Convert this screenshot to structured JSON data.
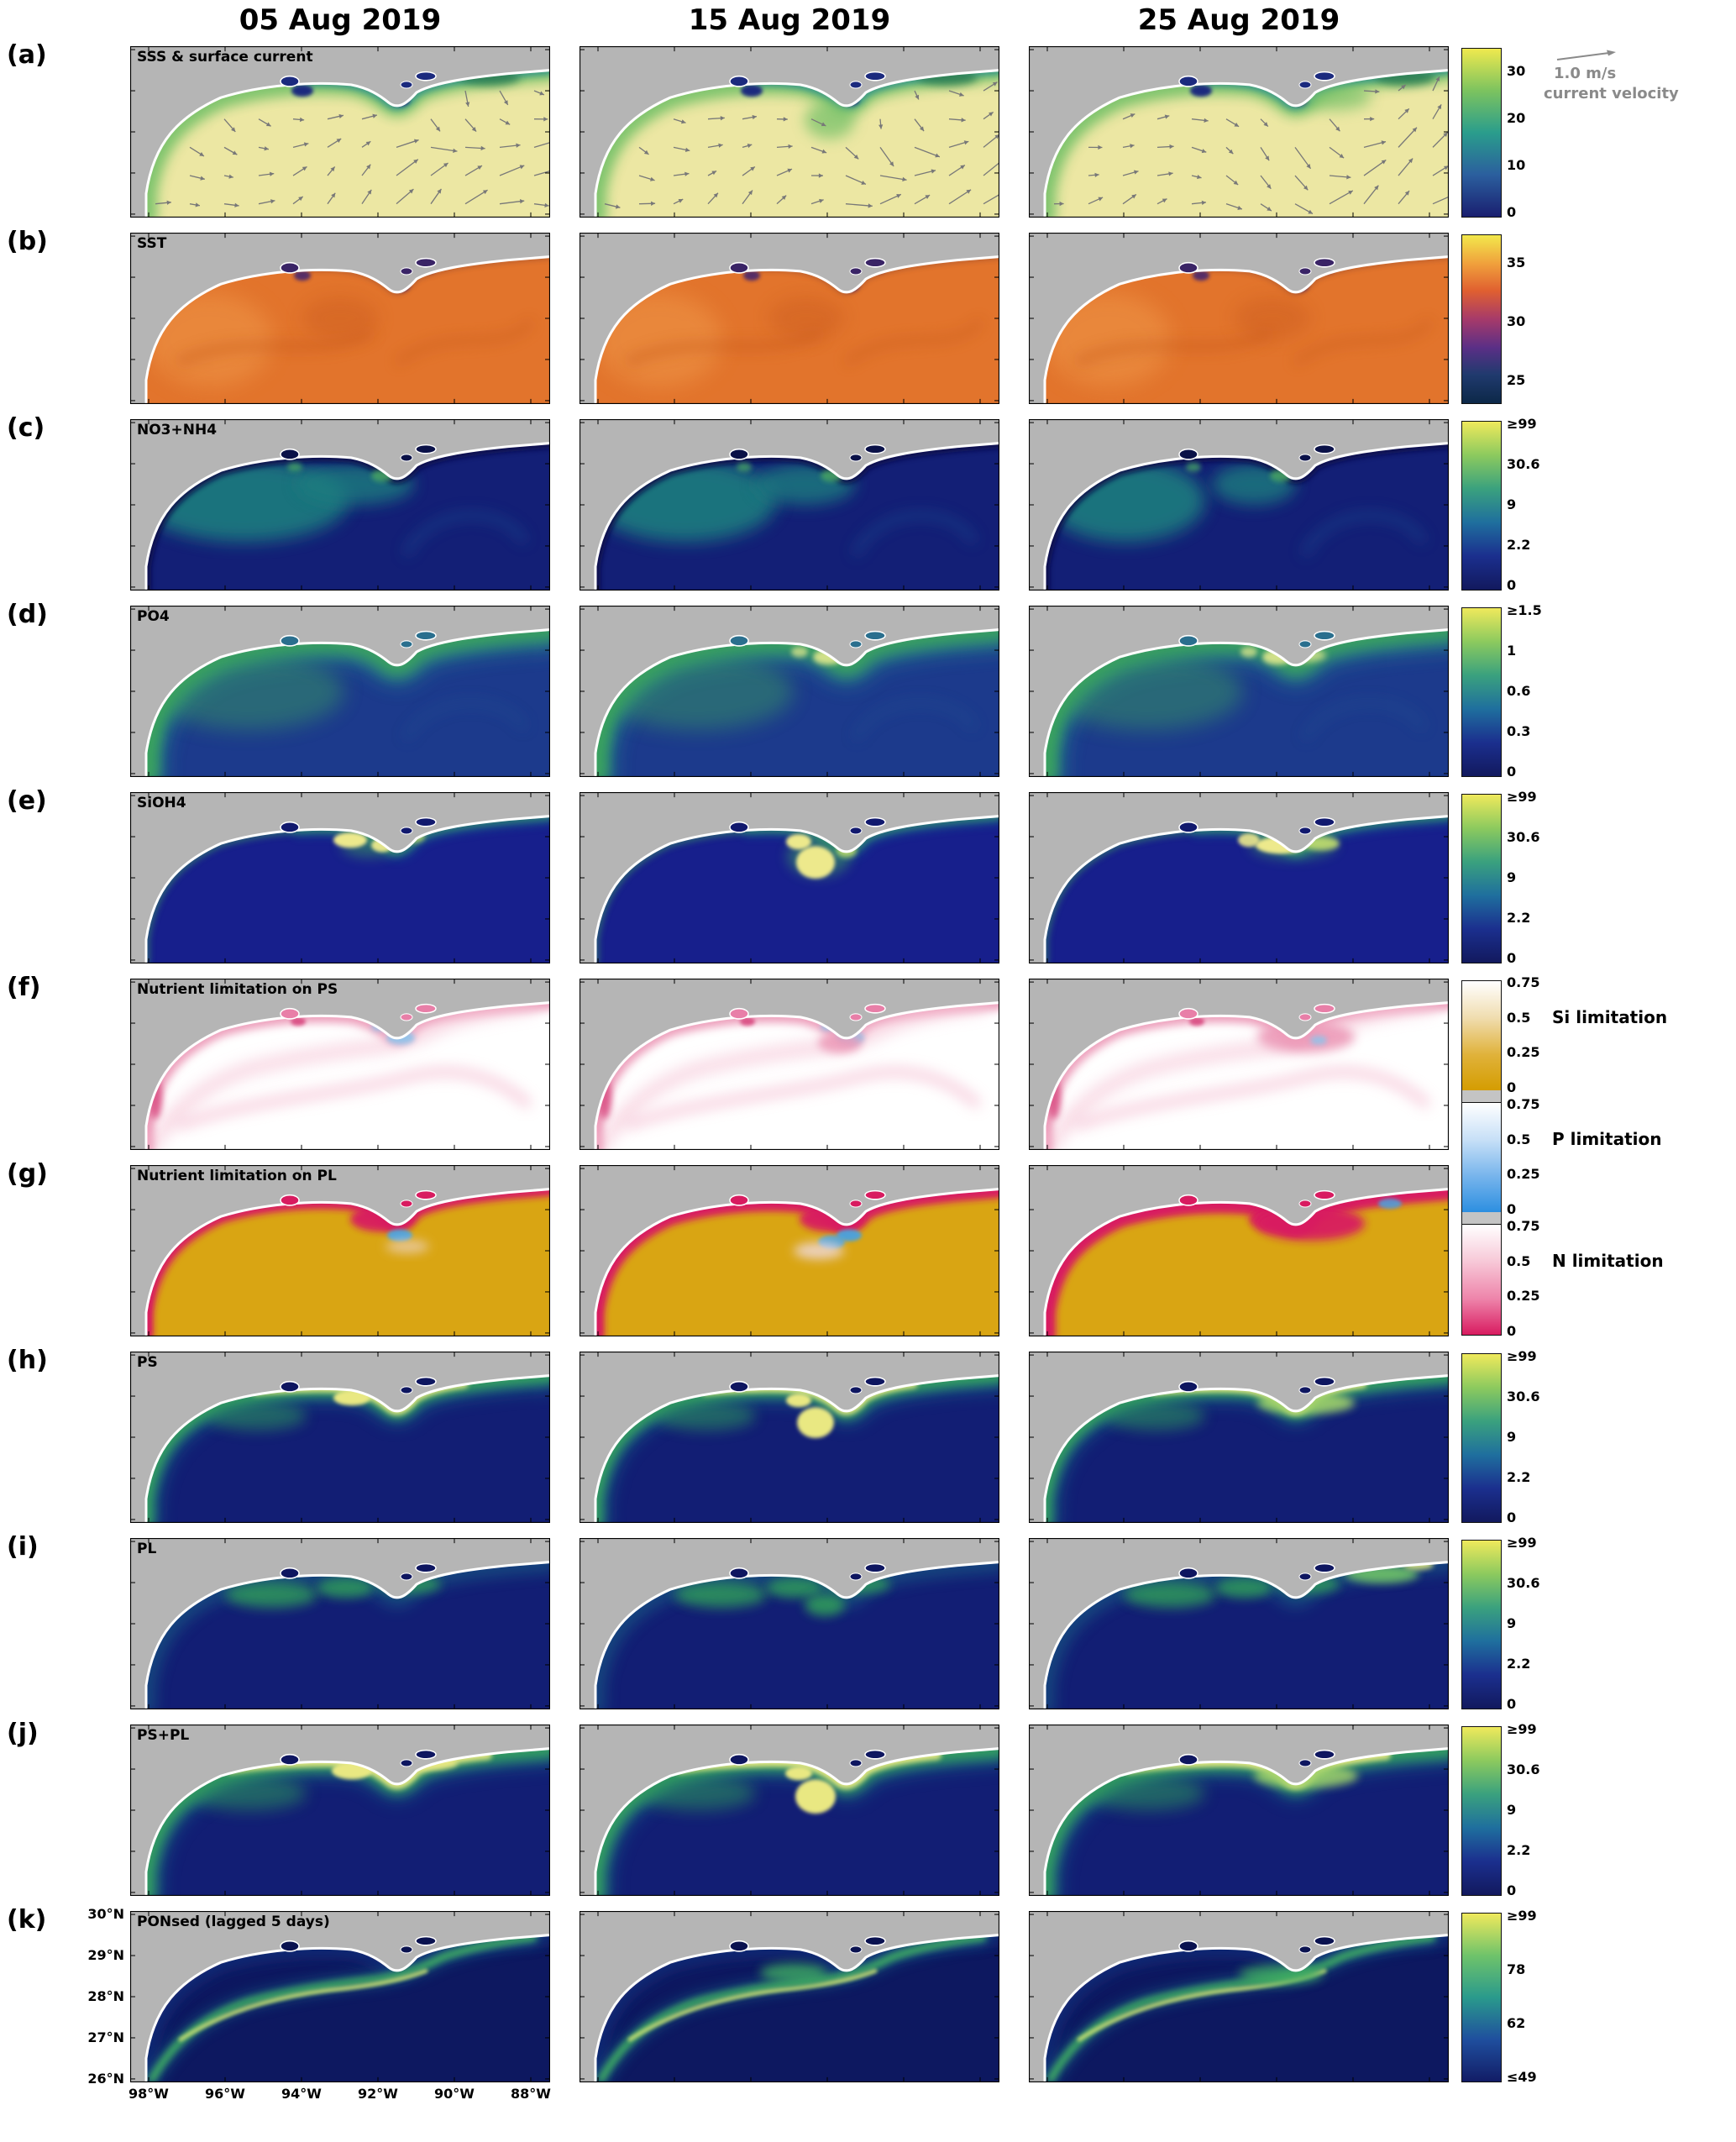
{
  "figure": {
    "columns": [
      {
        "label": "05 Aug 2019"
      },
      {
        "label": "15 Aug 2019"
      },
      {
        "label": "25 Aug 2019"
      }
    ],
    "quiver_legend": {
      "speed_label": "1.0 m/s",
      "caption": "current velocity"
    },
    "axes": {
      "lat_ticks": [
        "30°N",
        "29°N",
        "28°N",
        "27°N",
        "26°N"
      ],
      "lon_ticks": [
        "98°W",
        "96°W",
        "94°W",
        "92°W",
        "90°W",
        "88°W"
      ]
    },
    "colors": {
      "land": "#b5b5b5",
      "background": "#ffffff",
      "tick_text": "#000000",
      "legend_text": "#8a8a8a",
      "gap_gray": "#c4c4c4",
      "arrow": "#787878"
    },
    "rows": [
      {
        "id": "a",
        "index_label": "(a)",
        "title": "SSS & surface current",
        "var_id": "sss",
        "palette": {
          "base": "#ece7a3",
          "green": "#79c26a",
          "green2": "#2e7f52",
          "teal": "#2b8f8d",
          "navy": "#1b2a7e",
          "bay": "#1b2a7e"
        },
        "colorbar": {
          "ticks": [
            "30",
            "20",
            "10",
            "0"
          ],
          "tick_pos": [
            0.14,
            0.42,
            0.7,
            0.98
          ],
          "gradient": [
            "#efe94e",
            "#7cc35f",
            "#2a9d8c",
            "#2b5f9e",
            "#1a1f70"
          ]
        }
      },
      {
        "id": "b",
        "index_label": "(b)",
        "title": "SST",
        "var_id": "sst",
        "palette": {
          "base": "#e2742c",
          "swirl": "#c6571e",
          "fringe": "#8a4430",
          "warm": "#f09a4c",
          "dark": "#46286e",
          "bay": "#3a2466"
        },
        "colorbar": {
          "ticks": [
            "35",
            "30",
            "25"
          ],
          "tick_pos": [
            0.17,
            0.52,
            0.87
          ],
          "gradient": [
            "#f2e84c",
            "#f0a03c",
            "#e06030",
            "#a63a6a",
            "#5a2f86",
            "#203a6e",
            "#0c2848"
          ]
        }
      },
      {
        "id": "c",
        "index_label": "(c)",
        "title": "NO3+NH4",
        "var_id": "no3",
        "palette": {
          "base": "#131f76",
          "teal": "#1f7d7f",
          "green": "#46a465",
          "dark": "#0a1148",
          "swirlblue": "#1e4a8e",
          "bay": "#0a1148"
        },
        "colorbar": {
          "ticks": [
            "≥99",
            "30.6",
            "9",
            "2.2",
            "0"
          ],
          "tick_pos": [
            0.02,
            0.26,
            0.5,
            0.74,
            0.98
          ],
          "gradient": [
            "#efe95c",
            "#8cca5e",
            "#3aa17e",
            "#1f6f9e",
            "#1b2f8e",
            "#12195e"
          ]
        }
      },
      {
        "id": "d",
        "index_label": "(d)",
        "title": "PO4",
        "var_id": "po4",
        "palette": {
          "base": "#1c3a8c",
          "teal": "#27808e",
          "green": "#3aa35f",
          "pale": "#d9e48c",
          "swirlblue": "#234f92",
          "bay": "#2a6f8e"
        },
        "colorbar": {
          "ticks": [
            "≥1.5",
            "1",
            "0.6",
            "0.3",
            "0"
          ],
          "tick_pos": [
            0.02,
            0.26,
            0.5,
            0.74,
            0.98
          ],
          "gradient": [
            "#efe95c",
            "#8cca5e",
            "#3aa17e",
            "#1f6f9e",
            "#1b2f8e",
            "#12195e"
          ]
        }
      },
      {
        "id": "e",
        "index_label": "(e)",
        "title": "SiOH4",
        "var_id": "sioh4",
        "palette": {
          "base": "#171f8c",
          "teal": "#1f7f8e",
          "green": "#3fa45f",
          "yellow": "#ede98c",
          "yg": "#bcd96e",
          "bay": "#11196e"
        },
        "colorbar": {
          "ticks": [
            "≥99",
            "30.6",
            "9",
            "2.2",
            "0"
          ],
          "tick_pos": [
            0.02,
            0.26,
            0.5,
            0.74,
            0.98
          ],
          "gradient": [
            "#efe95c",
            "#8cca5e",
            "#3aa17e",
            "#1f6f9e",
            "#1b2f8e",
            "#12195e"
          ]
        }
      },
      {
        "id": "f",
        "index_label": "(f)",
        "title": "Nutrient limitation on PS",
        "var_id": "limps",
        "palette": {
          "base": "#ffffff",
          "pink": "#ec9ab8",
          "pinkpale": "#f5c3d5",
          "pinkpale2": "#f3b3ca",
          "deep": "#d84a80",
          "blue": "#8fc3ea",
          "bay": "#e87fa8"
        },
        "colorbar": null
      },
      {
        "id": "g",
        "index_label": "(g)",
        "title": "Nutrient limitation on PL",
        "var_id": "limpl",
        "palette": {
          "base": "#d9a513",
          "crimson": "#d81b60",
          "blue": "#4aa3e0",
          "pale": "#f0dbe4",
          "bay": "#d81b60"
        },
        "colorbar": null
      },
      {
        "id": "h",
        "index_label": "(h)",
        "title": "PS",
        "var_id": "ps",
        "palette": {
          "base": "#121e74",
          "teal": "#1f7f8e",
          "green": "#35a45f",
          "green2": "#2a8f5f",
          "yellow": "#e9e882",
          "yg": "#9fd06a",
          "bay": "#0e1660"
        },
        "colorbar": {
          "ticks": [
            "≥99",
            "30.6",
            "9",
            "2.2",
            "0"
          ],
          "tick_pos": [
            0.02,
            0.26,
            0.5,
            0.74,
            0.98
          ],
          "gradient": [
            "#efe95c",
            "#8cca5e",
            "#3aa17e",
            "#1f6f9e",
            "#1b2f8e",
            "#12195e"
          ]
        }
      },
      {
        "id": "i",
        "index_label": "(i)",
        "title": "PL",
        "var_id": "pl",
        "palette": {
          "base": "#121e74",
          "teal": "#1f7f8e",
          "green": "#2f9a5c",
          "brightgreen": "#6fc468",
          "yellow": "#dfe87f",
          "bay": "#0e1660"
        },
        "colorbar": {
          "ticks": [
            "≥99",
            "30.6",
            "9",
            "2.2",
            "0"
          ],
          "tick_pos": [
            0.02,
            0.26,
            0.5,
            0.74,
            0.98
          ],
          "gradient": [
            "#efe95c",
            "#8cca5e",
            "#3aa17e",
            "#1f6f9e",
            "#1b2f8e",
            "#12195e"
          ]
        }
      },
      {
        "id": "j",
        "index_label": "(j)",
        "title": "PS+PL",
        "var_id": "pspl",
        "palette": {
          "base": "#121e74",
          "teal": "#1f7f8e",
          "green": "#35a45f",
          "green2": "#2a8f5f",
          "yellow": "#e9e882",
          "yg": "#9fd06a",
          "bay": "#0e1660"
        },
        "colorbar": {
          "ticks": [
            "≥99",
            "30.6",
            "9",
            "2.2",
            "0"
          ],
          "tick_pos": [
            0.02,
            0.26,
            0.5,
            0.74,
            0.98
          ],
          "gradient": [
            "#efe95c",
            "#8cca5e",
            "#3aa17e",
            "#1f6f9e",
            "#1b2f8e",
            "#12195e"
          ]
        }
      },
      {
        "id": "k",
        "index_label": "(k)",
        "title": "PONsed (lagged 5 days)",
        "var_id": "ponsed",
        "palette": {
          "base": "#0d1860",
          "teal": "#1f6f8e",
          "green": "#3fae62",
          "yg": "#c8de74",
          "nearcoast": "#16307e",
          "bay": "#0a1250"
        },
        "colorbar": {
          "ticks": [
            "≥99",
            "78",
            "62",
            "≤49"
          ],
          "tick_pos": [
            0.02,
            0.34,
            0.66,
            0.98
          ],
          "gradient": [
            "#efe95c",
            "#6fc36a",
            "#2a9a8c",
            "#1f4f9e",
            "#121c66"
          ]
        }
      }
    ],
    "limitation_colorbar": {
      "segments": [
        {
          "id": "si",
          "caption": "Si limitation",
          "ticks": [
            "0.75",
            "0.5",
            "0.25",
            "0"
          ],
          "tick_pos": [
            0.02,
            0.34,
            0.66,
            0.98
          ],
          "gradient": [
            "#ffffff",
            "#f0ddb0",
            "#e0b23a",
            "#d49c00"
          ]
        },
        {
          "id": "p",
          "caption": "P limitation",
          "ticks": [
            "0.75",
            "0.5",
            "0.25",
            "0"
          ],
          "tick_pos": [
            0.02,
            0.34,
            0.66,
            0.98
          ],
          "gradient": [
            "#ffffff",
            "#c8e0f7",
            "#76b4ec",
            "#2b8ee0"
          ]
        },
        {
          "id": "n",
          "caption": "N limitation",
          "ticks": [
            "0.75",
            "0.5",
            "0.25",
            "0"
          ],
          "tick_pos": [
            0.02,
            0.34,
            0.66,
            0.98
          ],
          "gradient": [
            "#ffffff",
            "#f7c9d8",
            "#ee85ab",
            "#d81b60"
          ]
        }
      ]
    }
  }
}
